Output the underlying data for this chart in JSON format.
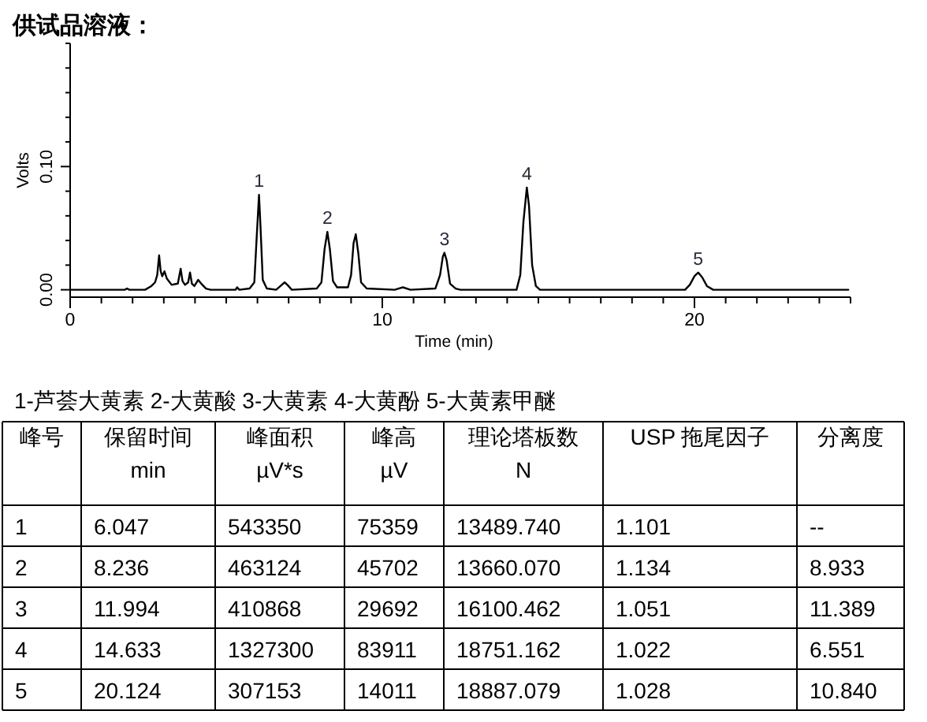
{
  "chart_data": [
    {
      "type": "line",
      "title": "供试品溶液：",
      "xlabel": "Time (min)",
      "ylabel": "Volts",
      "color": "#000000",
      "x": [
        0,
        1.75,
        1.82,
        1.9,
        2.4,
        2.6,
        2.72,
        2.79,
        2.85,
        2.9,
        2.95,
        3.02,
        3.1,
        3.25,
        3.45,
        3.54,
        3.6,
        3.68,
        3.78,
        3.84,
        3.9,
        3.98,
        4.1,
        4.2,
        4.35,
        4.5,
        5.3,
        5.35,
        5.42,
        5.75,
        5.9,
        5.97,
        6.05,
        6.1,
        6.17,
        6.3,
        6.6,
        6.78,
        6.87,
        6.96,
        7.1,
        7.9,
        8.05,
        8.15,
        8.24,
        8.32,
        8.42,
        8.55,
        8.9,
        9.0,
        9.08,
        9.15,
        9.23,
        9.32,
        9.5,
        10.4,
        10.66,
        10.9,
        11.7,
        11.85,
        11.94,
        11.99,
        12.06,
        12.17,
        12.35,
        12.5,
        14.3,
        14.42,
        14.52,
        14.63,
        14.7,
        14.8,
        14.92,
        15.05,
        19.7,
        19.85,
        20.0,
        20.12,
        20.25,
        20.4,
        20.6,
        24.93
      ],
      "values": [
        0,
        0,
        0.001,
        0,
        0,
        0.003,
        0.006,
        0.012,
        0.028,
        0.015,
        0.011,
        0.015,
        0.009,
        0.004,
        0.005,
        0.017,
        0.007,
        0.004,
        0.006,
        0.014,
        0.005,
        0.003,
        0.008,
        0.005,
        0.001,
        0,
        0,
        0.002,
        0,
        0.001,
        0.006,
        0.04,
        0.077,
        0.05,
        0.008,
        0.001,
        0,
        0.004,
        0.006,
        0.004,
        0,
        0.001,
        0.006,
        0.033,
        0.047,
        0.033,
        0.007,
        0.002,
        0.002,
        0.012,
        0.038,
        0.045,
        0.03,
        0.006,
        0.001,
        0,
        0.002,
        0,
        0.001,
        0.012,
        0.027,
        0.03,
        0.024,
        0.005,
        0.001,
        0,
        0,
        0.012,
        0.055,
        0.083,
        0.068,
        0.02,
        0.003,
        0,
        0,
        0.004,
        0.011,
        0.014,
        0.01,
        0.003,
        0,
        0
      ],
      "xlim": [
        0,
        25
      ],
      "ylim": [
        -0.006,
        0.2
      ],
      "xticks": [
        0,
        {
          "value": 1,
          "label": null
        },
        {
          "value": 2,
          "label": null
        },
        {
          "value": 3,
          "label": null
        },
        {
          "value": 4,
          "label": null
        },
        {
          "value": 5,
          "label": null
        },
        {
          "value": 6,
          "label": null
        },
        {
          "value": 7,
          "label": null
        },
        {
          "value": 8,
          "label": null
        },
        {
          "value": 9,
          "label": null
        },
        10,
        {
          "value": 11,
          "label": null
        },
        {
          "value": 12,
          "label": null
        },
        {
          "value": 13,
          "label": null
        },
        {
          "value": 14,
          "label": null
        },
        {
          "value": 15,
          "label": null
        },
        {
          "value": 16,
          "label": null
        },
        {
          "value": 17,
          "label": null
        },
        {
          "value": 18,
          "label": null
        },
        {
          "value": 19,
          "label": null
        },
        20,
        {
          "value": 21,
          "label": null
        },
        {
          "value": 22,
          "label": null
        },
        {
          "value": 23,
          "label": null
        },
        {
          "value": 24,
          "label": null
        },
        {
          "value": 25,
          "label": null
        }
      ],
      "yticks": [
        {
          "value": 0,
          "label": "0.00"
        },
        {
          "value": 0.02,
          "label": null
        },
        {
          "value": 0.04,
          "label": null
        },
        {
          "value": 0.06,
          "label": null
        },
        {
          "value": 0.08,
          "label": null
        },
        {
          "value": 0.1,
          "label": "0.10"
        },
        {
          "value": 0.12,
          "label": null
        },
        {
          "value": 0.14,
          "label": null
        },
        {
          "value": 0.16,
          "label": null
        },
        {
          "value": 0.18,
          "label": null
        },
        {
          "value": 0.2,
          "label": null
        }
      ],
      "annotations": [
        {
          "text": "1",
          "x": 6.05,
          "y": 0.077
        },
        {
          "text": "2",
          "x": 8.24,
          "y": 0.047
        },
        {
          "text": "3",
          "x": 11.99,
          "y": 0.03
        },
        {
          "text": "4",
          "x": 14.63,
          "y": 0.083
        },
        {
          "text": "5",
          "x": 20.12,
          "y": 0.014
        },
        "1-芦荟大黄素 2-大黄酸 3-大黄素 4-大黄酚 5-大黄素甲醚"
      ]
    },
    {
      "type": "heatmap",
      "ylabel": "峰号",
      "y_categories": [
        "1",
        "2",
        "3",
        "4",
        "5"
      ],
      "categories": [
        "保留时间\nmin",
        "峰面积\nµV*s",
        "峰高\nµV",
        "理论塔板数\nN",
        "USP 拖尾因子",
        "分离度"
      ],
      "cells": [
        [
          6.047,
          543350,
          75359,
          13489.74,
          1.101,
          null
        ],
        [
          8.236,
          463124,
          45702,
          13660.07,
          1.134,
          8.933
        ],
        [
          11.994,
          410868,
          29692,
          16100.462,
          1.051,
          11.389
        ],
        [
          14.633,
          1327300,
          83911,
          18751.162,
          1.022,
          6.551
        ],
        [
          20.124,
          307153,
          14011,
          18887.079,
          1.028,
          10.84
        ]
      ],
      "cell_labels": [
        [
          "6.047",
          "543350",
          "75359",
          "13489.740",
          "1.101",
          "--"
        ],
        [
          "8.236",
          "463124",
          "45702",
          "13660.070",
          "1.134",
          "8.933"
        ],
        [
          "11.994",
          "410868",
          "29692",
          "16100.462",
          "1.051",
          "11.389"
        ],
        [
          "14.633",
          "1327300",
          "83911",
          "18751.162",
          "1.022",
          "6.551"
        ],
        [
          "20.124",
          "307153",
          "14011",
          "18887.079",
          "1.028",
          "10.840"
        ]
      ]
    }
  ]
}
